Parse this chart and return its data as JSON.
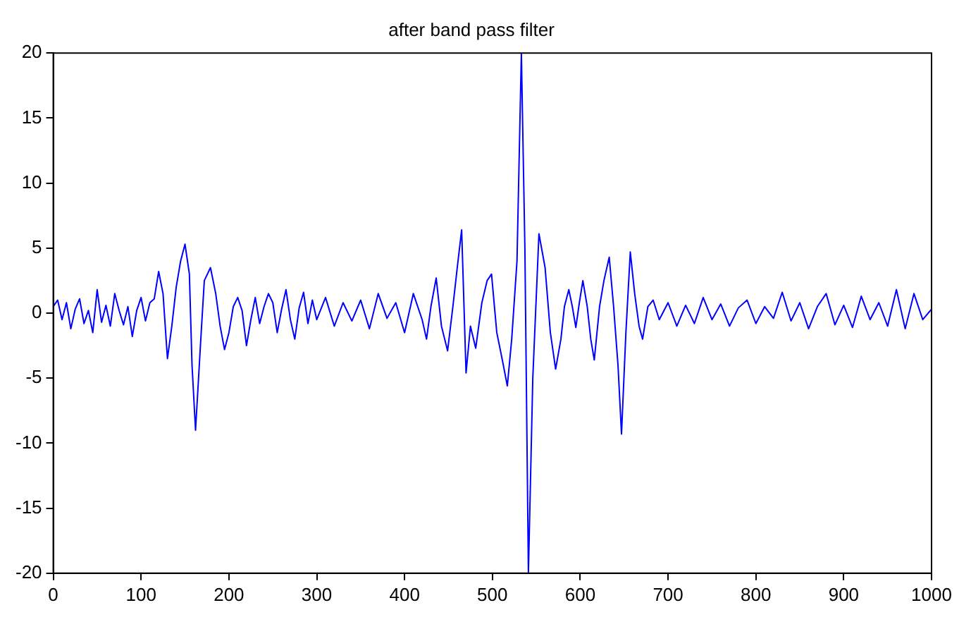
{
  "chart_data": {
    "type": "line",
    "title": "after band pass filter",
    "x": [
      0,
      5,
      10,
      15,
      20,
      25,
      30,
      35,
      40,
      45,
      50,
      55,
      60,
      65,
      70,
      75,
      80,
      85,
      90,
      95,
      100,
      105,
      110,
      115,
      120,
      125,
      130,
      135,
      140,
      145,
      150,
      155,
      158,
      162,
      168,
      172,
      179,
      185,
      190,
      195,
      200,
      205,
      210,
      215,
      220,
      225,
      230,
      235,
      240,
      245,
      250,
      255,
      260,
      265,
      270,
      275,
      280,
      285,
      290,
      295,
      300,
      310,
      320,
      330,
      340,
      350,
      360,
      370,
      380,
      390,
      400,
      410,
      420,
      425,
      430,
      436,
      442,
      449,
      455,
      460,
      465,
      470,
      475,
      481,
      488,
      494,
      499,
      505,
      511,
      517,
      522,
      528,
      533,
      537,
      541,
      546,
      553,
      560,
      566,
      572,
      578,
      582,
      587,
      591,
      595,
      599,
      603,
      608,
      612,
      616,
      622,
      627,
      633,
      638,
      643,
      647,
      652,
      657,
      662,
      667,
      671,
      677,
      683,
      690,
      700,
      710,
      720,
      730,
      740,
      750,
      760,
      770,
      780,
      790,
      800,
      810,
      820,
      830,
      840,
      850,
      860,
      870,
      880,
      890,
      900,
      910,
      920,
      930,
      940,
      950,
      960,
      970,
      980,
      990,
      1000
    ],
    "series": [
      {
        "color": "#0000ff",
        "values": [
          0.5,
          1.0,
          -0.5,
          0.8,
          -1.2,
          0.3,
          1.1,
          -0.8,
          0.2,
          -1.5,
          1.8,
          -0.7,
          0.6,
          -1.0,
          1.5,
          0.2,
          -0.9,
          0.5,
          -1.8,
          0.2,
          1.2,
          -0.6,
          0.8,
          1.1,
          3.2,
          1.5,
          -3.5,
          -1.0,
          2.0,
          4.0,
          5.3,
          3.0,
          -4.0,
          -9.0,
          -2.0,
          2.5,
          3.5,
          1.5,
          -1.0,
          -2.8,
          -1.5,
          0.5,
          1.2,
          0.2,
          -2.5,
          -0.5,
          1.2,
          -0.8,
          0.5,
          1.5,
          0.8,
          -1.5,
          0.3,
          1.8,
          -0.5,
          -2.0,
          0.4,
          1.6,
          -0.8,
          1.0,
          -0.5,
          1.2,
          -1.0,
          0.8,
          -0.6,
          1.0,
          -1.2,
          1.5,
          -0.4,
          0.8,
          -1.5,
          1.5,
          -0.5,
          -2.0,
          0.5,
          2.7,
          -1.0,
          -2.9,
          0.5,
          3.5,
          6.4,
          -4.6,
          -1.0,
          -2.7,
          0.8,
          2.5,
          3.0,
          -1.5,
          -3.5,
          -5.6,
          -2.0,
          4.0,
          20.0,
          5.0,
          -20.0,
          -5.0,
          6.1,
          3.5,
          -1.5,
          -4.3,
          -2.0,
          0.5,
          1.8,
          0.5,
          -1.1,
          0.8,
          2.5,
          0.5,
          -2.0,
          -3.6,
          0.5,
          2.5,
          4.3,
          0.5,
          -4.0,
          -9.3,
          -1.5,
          4.7,
          1.5,
          -1.0,
          -2.0,
          0.5,
          1.0,
          -0.5,
          0.8,
          -1.0,
          0.6,
          -0.8,
          1.2,
          -0.5,
          0.7,
          -1.0,
          0.4,
          1.0,
          -0.8,
          0.5,
          -0.4,
          1.6,
          -0.6,
          0.8,
          -1.2,
          0.5,
          1.5,
          -0.9,
          0.6,
          -1.1,
          1.3,
          -0.5,
          0.8,
          -1.0,
          1.8,
          -1.2,
          1.5,
          -0.5,
          0.3
        ]
      }
    ],
    "xlim": [
      0,
      1000
    ],
    "xticks": [
      0,
      100,
      200,
      300,
      400,
      500,
      600,
      700,
      800,
      900,
      1000
    ],
    "ylim": [
      -20,
      20
    ],
    "yticks": [
      -20,
      -15,
      -10,
      -5,
      0,
      5,
      10,
      15,
      20
    ],
    "grid": false,
    "legend": false,
    "marker": "none",
    "line_style": "solid"
  }
}
